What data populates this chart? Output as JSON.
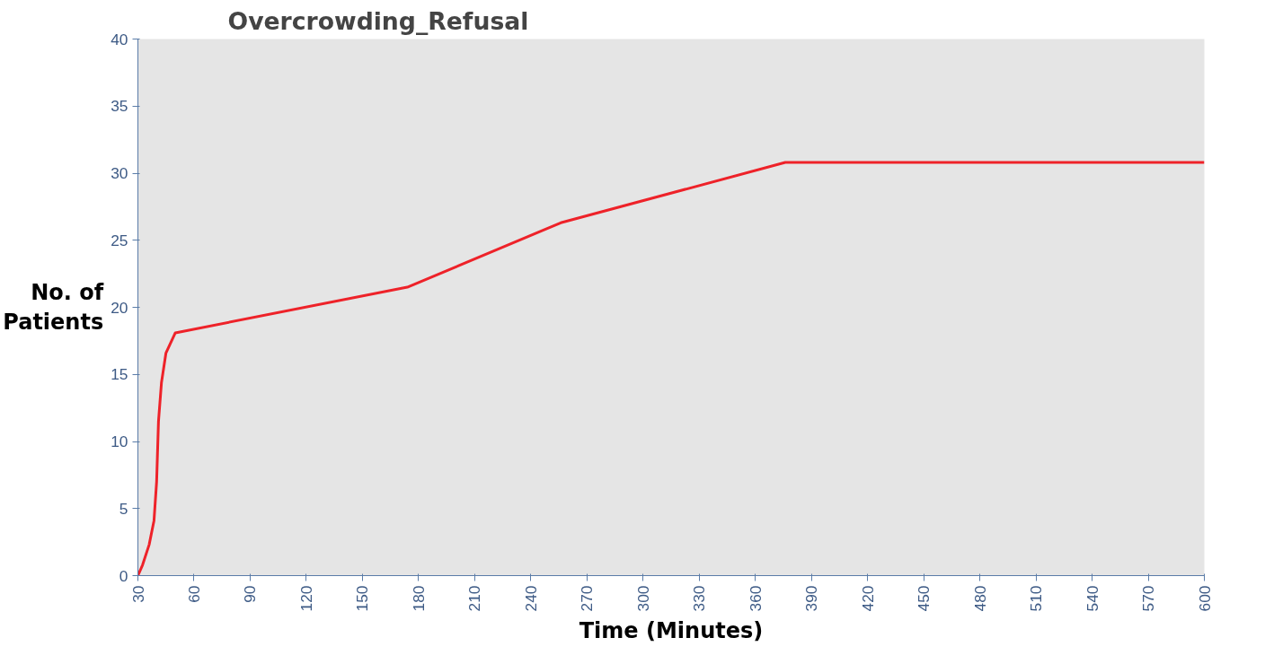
{
  "chart_data": {
    "type": "line",
    "title": "Overcrowding_Refusal",
    "xlabel": "Time (Minutes)",
    "ylabel": "No. of\nPatients",
    "x": [
      30,
      32.5,
      36,
      38.6,
      40,
      41,
      42.6,
      45,
      50,
      174,
      256,
      376,
      600
    ],
    "series": [
      {
        "color": "#ee2229",
        "values": [
          0,
          0.8,
          2.3,
          4.1,
          7,
          11.5,
          14.4,
          16.6,
          18.1,
          21.5,
          26.3,
          30.8,
          30.8
        ]
      }
    ],
    "xlim": [
      30,
      600
    ],
    "ylim": [
      0,
      40
    ],
    "xticks": [
      30,
      60,
      90,
      120,
      150,
      180,
      210,
      240,
      270,
      300,
      330,
      360,
      390,
      420,
      450,
      480,
      510,
      540,
      570,
      600
    ],
    "yticks": [
      0,
      5,
      10,
      15,
      20,
      25,
      30,
      35,
      40
    ]
  }
}
